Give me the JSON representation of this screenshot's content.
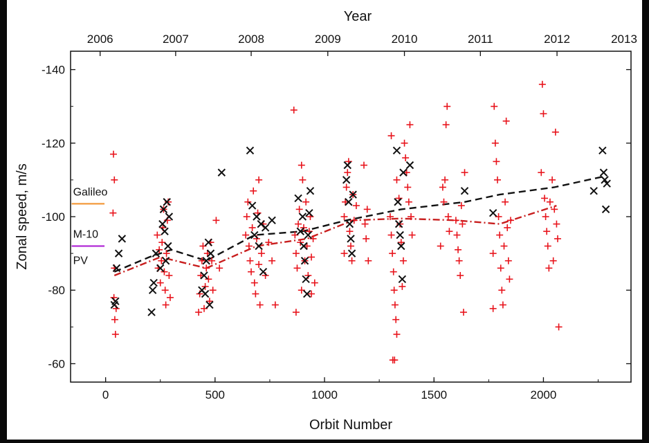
{
  "chart_data": {
    "type": "scatter",
    "xlabel": "Orbit Number",
    "ylabel": "Zonal speed, m/s",
    "top_axis_label": "Year",
    "xlim": [
      -160,
      2400
    ],
    "ylim": [
      -55,
      -145
    ],
    "x_ticks": [
      0,
      500,
      1000,
      1500,
      2000
    ],
    "y_ticks": [
      -140,
      -120,
      -100,
      -80,
      -60
    ],
    "top_ticks": [
      {
        "label": "2006",
        "orbit": -25
      },
      {
        "label": "2007",
        "orbit": 320
      },
      {
        "label": "2008",
        "orbit": 665
      },
      {
        "label": "2009",
        "orbit": 1015
      },
      {
        "label": "2010",
        "orbit": 1365
      },
      {
        "label": "2011",
        "orbit": 1712
      },
      {
        "label": "2012",
        "orbit": 2062
      },
      {
        "label": "2013",
        "orbit": 2410
      }
    ],
    "reference_lines": [
      {
        "label": "Galileo",
        "y": -103.5,
        "color": "#f39a3c"
      },
      {
        "label": "M-10",
        "y": -92,
        "color": "#b12ad6"
      },
      {
        "label": "PV",
        "y": -92,
        "color": ""
      }
    ],
    "reference_x_range": [
      -155,
      -5
    ],
    "series": [
      {
        "marker": "plus",
        "color": "#e8141c",
        "points": [
          [
            40,
            -86
          ],
          [
            38,
            -78
          ],
          [
            42,
            -72
          ],
          [
            45,
            -68
          ],
          [
            36,
            -117
          ],
          [
            40,
            -110
          ],
          [
            34,
            -101
          ],
          [
            48,
            -75
          ],
          [
            250,
            -82
          ],
          [
            255,
            -88
          ],
          [
            258,
            -93
          ],
          [
            262,
            -97
          ],
          [
            265,
            -102
          ],
          [
            268,
            -85
          ],
          [
            272,
            -80
          ],
          [
            275,
            -76
          ],
          [
            278,
            -90
          ],
          [
            282,
            -99
          ],
          [
            286,
            -104
          ],
          [
            240,
            -86
          ],
          [
            245,
            -91
          ],
          [
            236,
            -95
          ],
          [
            290,
            -84
          ],
          [
            295,
            -78
          ],
          [
            430,
            -79
          ],
          [
            435,
            -84
          ],
          [
            440,
            -88
          ],
          [
            445,
            -92
          ],
          [
            450,
            -75
          ],
          [
            455,
            -81
          ],
          [
            460,
            -86
          ],
          [
            465,
            -90
          ],
          [
            470,
            -83
          ],
          [
            475,
            -77
          ],
          [
            480,
            -93
          ],
          [
            485,
            -88
          ],
          [
            490,
            -80
          ],
          [
            505,
            -99
          ],
          [
            520,
            -86
          ],
          [
            425,
            -74
          ],
          [
            640,
            -95
          ],
          [
            645,
            -100
          ],
          [
            650,
            -104
          ],
          [
            655,
            -92
          ],
          [
            660,
            -88
          ],
          [
            665,
            -85
          ],
          [
            670,
            -97
          ],
          [
            675,
            -107
          ],
          [
            680,
            -82
          ],
          [
            685,
            -79
          ],
          [
            690,
            -94
          ],
          [
            695,
            -101
          ],
          [
            700,
            -87
          ],
          [
            705,
            -76
          ],
          [
            712,
            -90
          ],
          [
            720,
            -98
          ],
          [
            730,
            -84
          ],
          [
            745,
            -93
          ],
          [
            760,
            -88
          ],
          [
            775,
            -76
          ],
          [
            700,
            -110
          ],
          [
            860,
            -129
          ],
          [
            865,
            -95
          ],
          [
            870,
            -90
          ],
          [
            875,
            -86
          ],
          [
            880,
            -98
          ],
          [
            885,
            -102
          ],
          [
            890,
            -93
          ],
          [
            895,
            -80
          ],
          [
            900,
            -110
          ],
          [
            905,
            -97
          ],
          [
            910,
            -88
          ],
          [
            915,
            -104
          ],
          [
            920,
            -92
          ],
          [
            925,
            -84
          ],
          [
            930,
            -96
          ],
          [
            935,
            -100
          ],
          [
            940,
            -89
          ],
          [
            948,
            -94
          ],
          [
            955,
            -82
          ],
          [
            870,
            -74
          ],
          [
            895,
            -114
          ],
          [
            940,
            -79
          ],
          [
            1090,
            -100
          ],
          [
            1095,
            -104
          ],
          [
            1100,
            -108
          ],
          [
            1105,
            -112
          ],
          [
            1110,
            -115
          ],
          [
            1115,
            -96
          ],
          [
            1120,
            -92
          ],
          [
            1125,
            -88
          ],
          [
            1130,
            -106
          ],
          [
            1135,
            -99
          ],
          [
            1090,
            -90
          ],
          [
            1180,
            -114
          ],
          [
            1185,
            -98
          ],
          [
            1190,
            -94
          ],
          [
            1195,
            -102
          ],
          [
            1200,
            -88
          ],
          [
            1145,
            -103
          ],
          [
            1305,
            -95
          ],
          [
            1310,
            -90
          ],
          [
            1315,
            -85
          ],
          [
            1318,
            -80
          ],
          [
            1322,
            -76
          ],
          [
            1326,
            -72
          ],
          [
            1330,
            -68
          ],
          [
            1312,
            -61
          ],
          [
            1320,
            -61
          ],
          [
            1300,
            -100
          ],
          [
            1305,
            -122
          ],
          [
            1330,
            -110
          ],
          [
            1340,
            -105
          ],
          [
            1345,
            -98
          ],
          [
            1350,
            -93
          ],
          [
            1360,
            -88
          ],
          [
            1365,
            -120
          ],
          [
            1370,
            -116
          ],
          [
            1375,
            -112
          ],
          [
            1380,
            -108
          ],
          [
            1385,
            -104
          ],
          [
            1390,
            -125
          ],
          [
            1395,
            -100
          ],
          [
            1400,
            -95
          ],
          [
            1355,
            -81
          ],
          [
            1540,
            -108
          ],
          [
            1545,
            -104
          ],
          [
            1550,
            -110
          ],
          [
            1555,
            -125
          ],
          [
            1560,
            -130
          ],
          [
            1565,
            -100
          ],
          [
            1570,
            -96
          ],
          [
            1530,
            -92
          ],
          [
            1600,
            -99
          ],
          [
            1605,
            -95
          ],
          [
            1610,
            -91
          ],
          [
            1615,
            -88
          ],
          [
            1620,
            -84
          ],
          [
            1625,
            -103
          ],
          [
            1630,
            -98
          ],
          [
            1635,
            -74
          ],
          [
            1640,
            -112
          ],
          [
            1770,
            -90
          ],
          [
            1775,
            -130
          ],
          [
            1780,
            -120
          ],
          [
            1785,
            -115
          ],
          [
            1790,
            -110
          ],
          [
            1795,
            -100
          ],
          [
            1800,
            -95
          ],
          [
            1805,
            -86
          ],
          [
            1810,
            -80
          ],
          [
            1815,
            -76
          ],
          [
            1820,
            -92
          ],
          [
            1825,
            -104
          ],
          [
            1830,
            -126
          ],
          [
            1835,
            -97
          ],
          [
            1840,
            -88
          ],
          [
            1845,
            -83
          ],
          [
            1850,
            -99
          ],
          [
            1770,
            -75
          ],
          [
            1990,
            -112
          ],
          [
            1995,
            -136
          ],
          [
            2000,
            -128
          ],
          [
            2005,
            -105
          ],
          [
            2010,
            -100
          ],
          [
            2015,
            -96
          ],
          [
            2020,
            -92
          ],
          [
            2025,
            -86
          ],
          [
            2030,
            -104
          ],
          [
            2040,
            -110
          ],
          [
            2050,
            -102
          ],
          [
            2055,
            -123
          ],
          [
            2060,
            -98
          ],
          [
            2065,
            -94
          ],
          [
            2070,
            -70
          ],
          [
            2045,
            -88
          ]
        ]
      },
      {
        "marker": "cross",
        "color": "#111111",
        "points": [
          [
            45,
            -77
          ],
          [
            50,
            -86
          ],
          [
            60,
            -90
          ],
          [
            75,
            -94
          ],
          [
            40,
            -76
          ],
          [
            210,
            -74
          ],
          [
            215,
            -80
          ],
          [
            220,
            -82
          ],
          [
            230,
            -90
          ],
          [
            260,
            -98
          ],
          [
            265,
            -102
          ],
          [
            270,
            -96
          ],
          [
            275,
            -88
          ],
          [
            280,
            -104
          ],
          [
            285,
            -92
          ],
          [
            290,
            -100
          ],
          [
            250,
            -86
          ],
          [
            440,
            -80
          ],
          [
            450,
            -84
          ],
          [
            460,
            -88
          ],
          [
            470,
            -93
          ],
          [
            475,
            -76
          ],
          [
            480,
            -90
          ],
          [
            455,
            -79
          ],
          [
            530,
            -112
          ],
          [
            660,
            -118
          ],
          [
            670,
            -103
          ],
          [
            680,
            -95
          ],
          [
            690,
            -100
          ],
          [
            700,
            -92
          ],
          [
            710,
            -98
          ],
          [
            720,
            -85
          ],
          [
            730,
            -97
          ],
          [
            760,
            -99
          ],
          [
            880,
            -105
          ],
          [
            890,
            -96
          ],
          [
            900,
            -100
          ],
          [
            905,
            -92
          ],
          [
            910,
            -88
          ],
          [
            915,
            -83
          ],
          [
            920,
            -79
          ],
          [
            925,
            -95
          ],
          [
            930,
            -101
          ],
          [
            935,
            -107
          ],
          [
            1100,
            -110
          ],
          [
            1105,
            -114
          ],
          [
            1110,
            -104
          ],
          [
            1115,
            -98
          ],
          [
            1120,
            -94
          ],
          [
            1125,
            -90
          ],
          [
            1130,
            -106
          ],
          [
            1330,
            -118
          ],
          [
            1335,
            -104
          ],
          [
            1340,
            -98
          ],
          [
            1345,
            -95
          ],
          [
            1350,
            -92
          ],
          [
            1355,
            -83
          ],
          [
            1360,
            -112
          ],
          [
            1390,
            -114
          ],
          [
            1640,
            -107
          ],
          [
            1770,
            -101
          ],
          [
            2230,
            -107
          ],
          [
            2270,
            -118
          ],
          [
            2275,
            -112
          ],
          [
            2280,
            -110
          ],
          [
            2285,
            -102
          ],
          [
            2290,
            -109
          ]
        ]
      }
    ],
    "trend_lines": [
      {
        "style": "dashed",
        "color": "#111111",
        "points": [
          [
            40,
            -85
          ],
          [
            200,
            -89
          ],
          [
            300,
            -91
          ],
          [
            460,
            -88
          ],
          [
            680,
            -95
          ],
          [
            900,
            -96
          ],
          [
            1100,
            -99
          ],
          [
            1350,
            -102
          ],
          [
            1640,
            -104
          ],
          [
            1800,
            -106
          ],
          [
            2050,
            -108
          ],
          [
            2280,
            -111
          ]
        ]
      },
      {
        "style": "dash-dot",
        "color": "#c81e1e",
        "points": [
          [
            40,
            -84
          ],
          [
            250,
            -89
          ],
          [
            460,
            -86
          ],
          [
            690,
            -92
          ],
          [
            920,
            -94
          ],
          [
            1130,
            -99
          ],
          [
            1350,
            -99.5
          ],
          [
            1600,
            -99
          ],
          [
            1800,
            -98
          ],
          [
            2060,
            -103
          ]
        ]
      }
    ]
  }
}
